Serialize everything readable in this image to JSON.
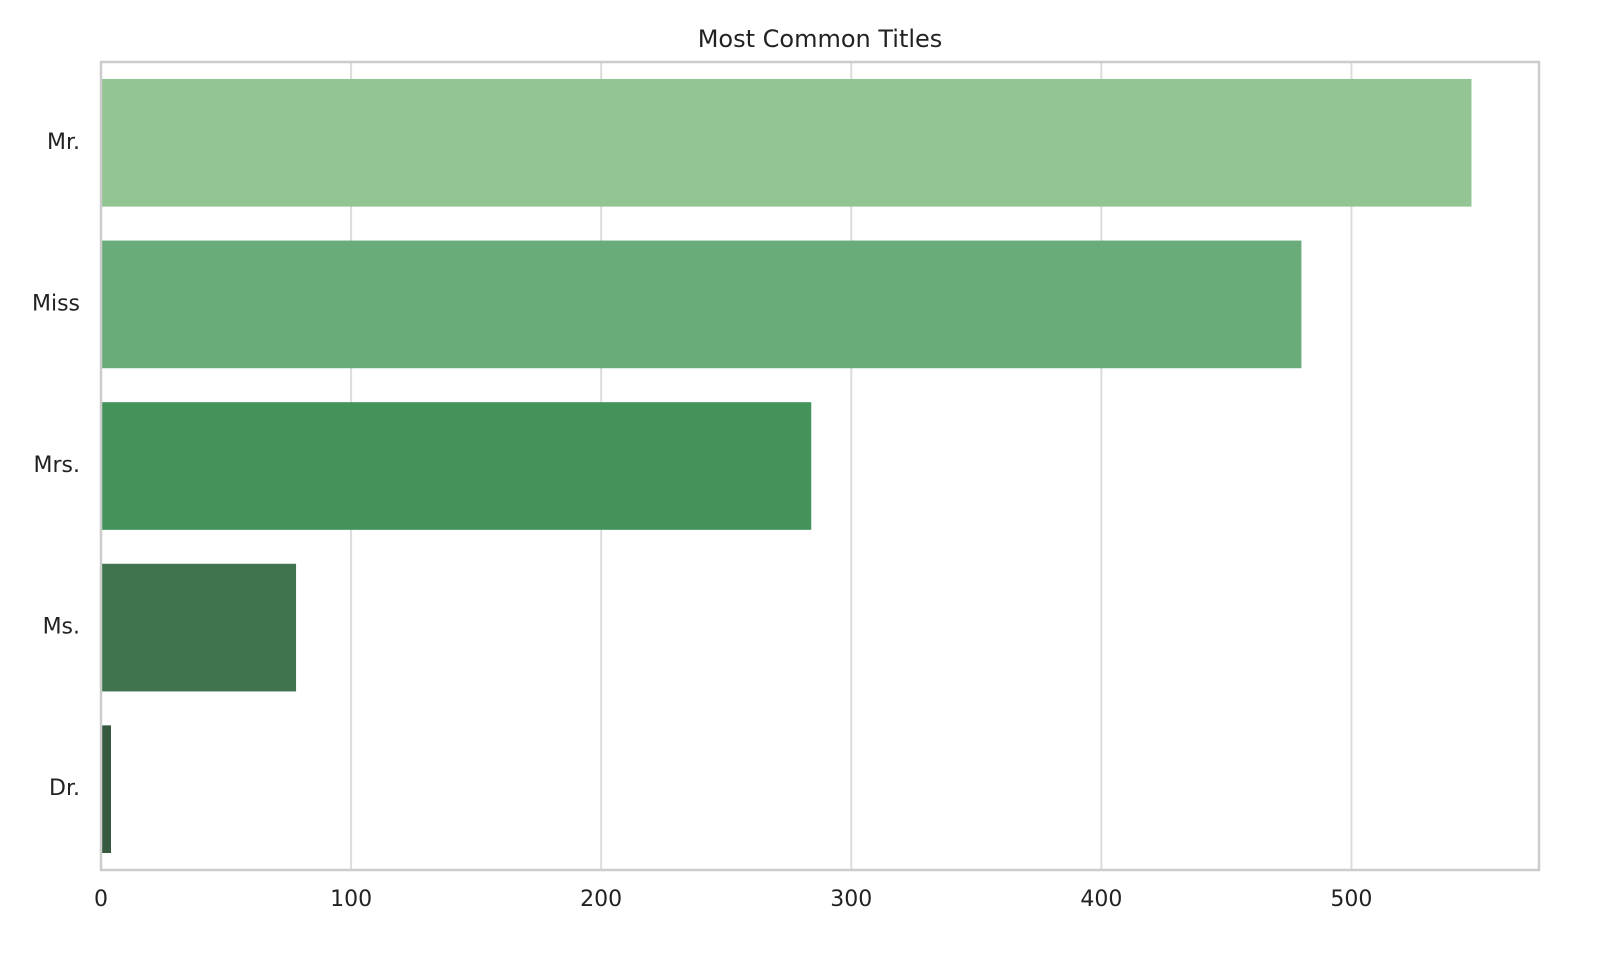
{
  "chart_data": {
    "type": "barh",
    "title": "Most Common Titles",
    "categories": [
      "Mr.",
      "Miss",
      "Mrs.",
      "Ms.",
      "Dr."
    ],
    "values": [
      548,
      480,
      284,
      78,
      4
    ],
    "colors": [
      "#93c493",
      "#6aab7a",
      "#44935a",
      "#3f734e",
      "#365a40"
    ],
    "xlim": [
      0,
      575
    ],
    "xticks": [
      0,
      100,
      200,
      300,
      400,
      500
    ],
    "grid": true
  }
}
